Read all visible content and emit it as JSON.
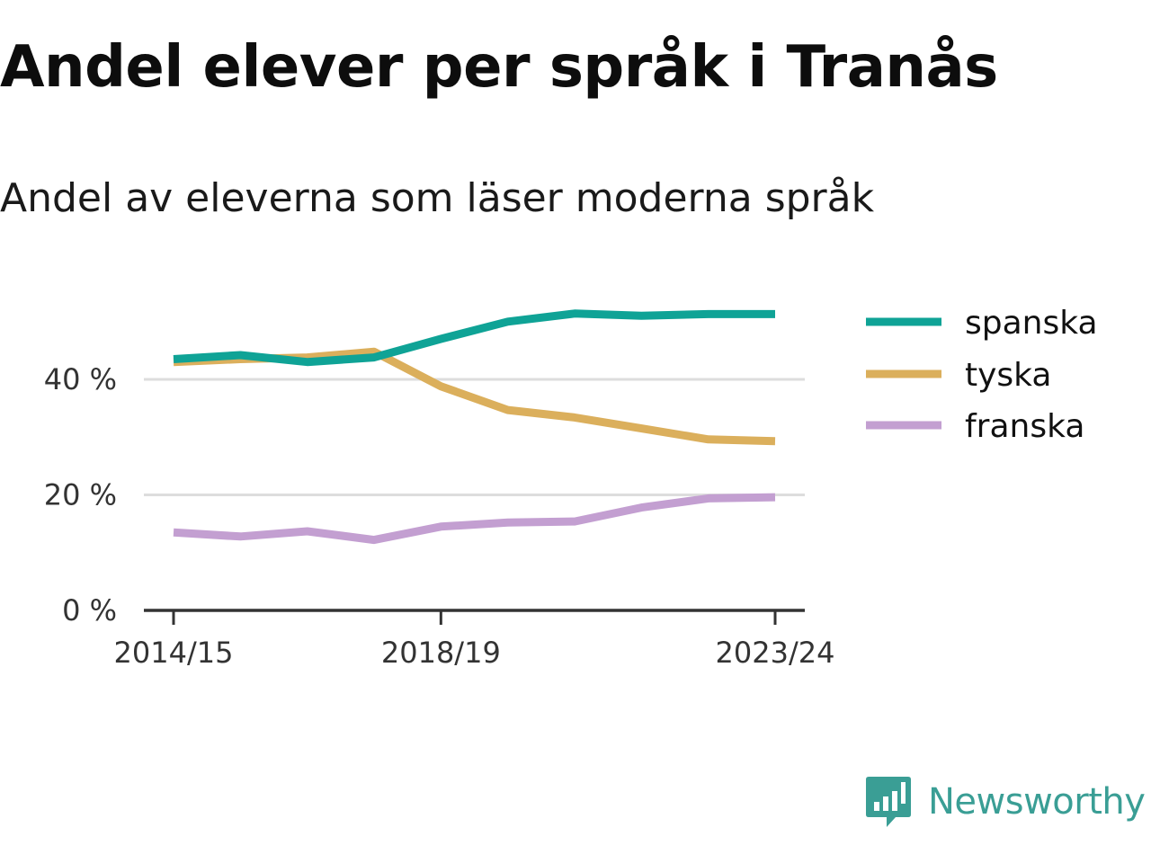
{
  "title": "Andel elever per språk i Tranås",
  "subtitle": "Andel av eleverna som läser moderna språk",
  "brand": {
    "name": "Newsworthy",
    "color": "#3a9e95",
    "icon": "newsworthy-chart-bubble-icon"
  },
  "chart_data": {
    "type": "line",
    "x": [
      "2014/15",
      "2015/16",
      "2016/17",
      "2017/18",
      "2018/19",
      "2019/20",
      "2020/21",
      "2021/22",
      "2022/23",
      "2023/24"
    ],
    "x_tick_labels": [
      "2014/15",
      "2018/19",
      "2023/24"
    ],
    "y_tick_labels": [
      "0 %",
      "20 %",
      "40 %"
    ],
    "y_ticks": [
      0,
      20,
      40
    ],
    "ylim": [
      0,
      55
    ],
    "grid": true,
    "legend_position": "right",
    "series": [
      {
        "name": "spanska",
        "color": "#0fa396",
        "values": [
          43.5,
          44.2,
          43.0,
          43.8,
          47.0,
          50.0,
          51.4,
          51.0,
          51.3,
          51.3
        ]
      },
      {
        "name": "tyska",
        "color": "#dbaf5c",
        "values": [
          43.0,
          43.5,
          43.8,
          44.8,
          38.8,
          34.7,
          33.4,
          31.5,
          29.6,
          29.3
        ]
      },
      {
        "name": "franska",
        "color": "#c39fd1",
        "values": [
          13.5,
          12.8,
          13.7,
          12.2,
          14.5,
          15.2,
          15.4,
          17.8,
          19.4,
          19.6
        ]
      }
    ]
  }
}
